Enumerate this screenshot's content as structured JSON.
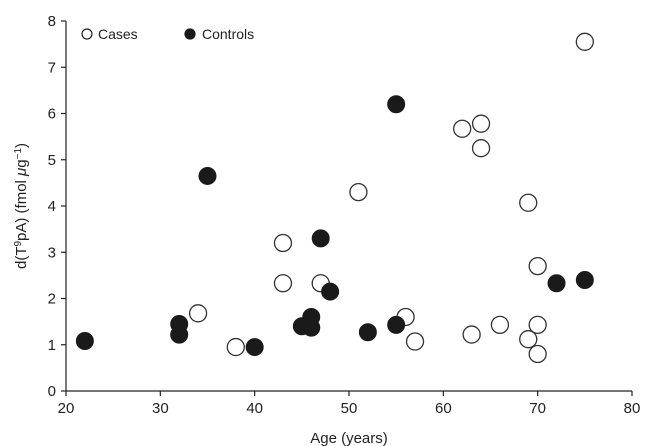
{
  "chart_data": {
    "type": "scatter",
    "xlabel": "Age (years)",
    "ylabel": {
      "main": "d(T",
      "sup1": "9",
      "mid": "pA) (fmol ",
      "mu": "μ",
      "g": "g",
      "sup2": "−1",
      "end": ")"
    },
    "xlim": [
      20,
      80
    ],
    "ylim": [
      0,
      8
    ],
    "xticks": [
      20,
      30,
      40,
      50,
      60,
      70,
      80
    ],
    "yticks": [
      0,
      1,
      2,
      3,
      4,
      5,
      6,
      7,
      8
    ],
    "grid": false,
    "legend_position": "top-left",
    "series": [
      {
        "name": "Cases",
        "marker": "open-circle",
        "color": "#1a1a1a",
        "points": [
          {
            "x": 34,
            "y": 1.68
          },
          {
            "x": 38,
            "y": 0.95
          },
          {
            "x": 43,
            "y": 3.2
          },
          {
            "x": 43,
            "y": 2.33
          },
          {
            "x": 47,
            "y": 2.33
          },
          {
            "x": 51,
            "y": 4.3
          },
          {
            "x": 56,
            "y": 1.6
          },
          {
            "x": 57,
            "y": 1.07
          },
          {
            "x": 62,
            "y": 5.67
          },
          {
            "x": 63,
            "y": 1.22
          },
          {
            "x": 64,
            "y": 5.78
          },
          {
            "x": 64,
            "y": 5.25
          },
          {
            "x": 66,
            "y": 1.43
          },
          {
            "x": 69,
            "y": 4.07
          },
          {
            "x": 69,
            "y": 1.12
          },
          {
            "x": 70,
            "y": 2.7
          },
          {
            "x": 70,
            "y": 1.43
          },
          {
            "x": 70,
            "y": 0.8
          },
          {
            "x": 75,
            "y": 7.55
          }
        ]
      },
      {
        "name": "Controls",
        "marker": "filled-circle",
        "color": "#1a1a1a",
        "points": [
          {
            "x": 22,
            "y": 1.08
          },
          {
            "x": 32,
            "y": 1.45
          },
          {
            "x": 32,
            "y": 1.22
          },
          {
            "x": 35,
            "y": 4.65
          },
          {
            "x": 40,
            "y": 0.95
          },
          {
            "x": 45,
            "y": 1.4
          },
          {
            "x": 46,
            "y": 1.6
          },
          {
            "x": 46,
            "y": 1.37
          },
          {
            "x": 47,
            "y": 3.3
          },
          {
            "x": 48,
            "y": 2.15
          },
          {
            "x": 52,
            "y": 1.27
          },
          {
            "x": 55,
            "y": 6.2
          },
          {
            "x": 55,
            "y": 1.43
          },
          {
            "x": 72,
            "y": 2.33
          },
          {
            "x": 75,
            "y": 2.4
          }
        ]
      }
    ]
  }
}
